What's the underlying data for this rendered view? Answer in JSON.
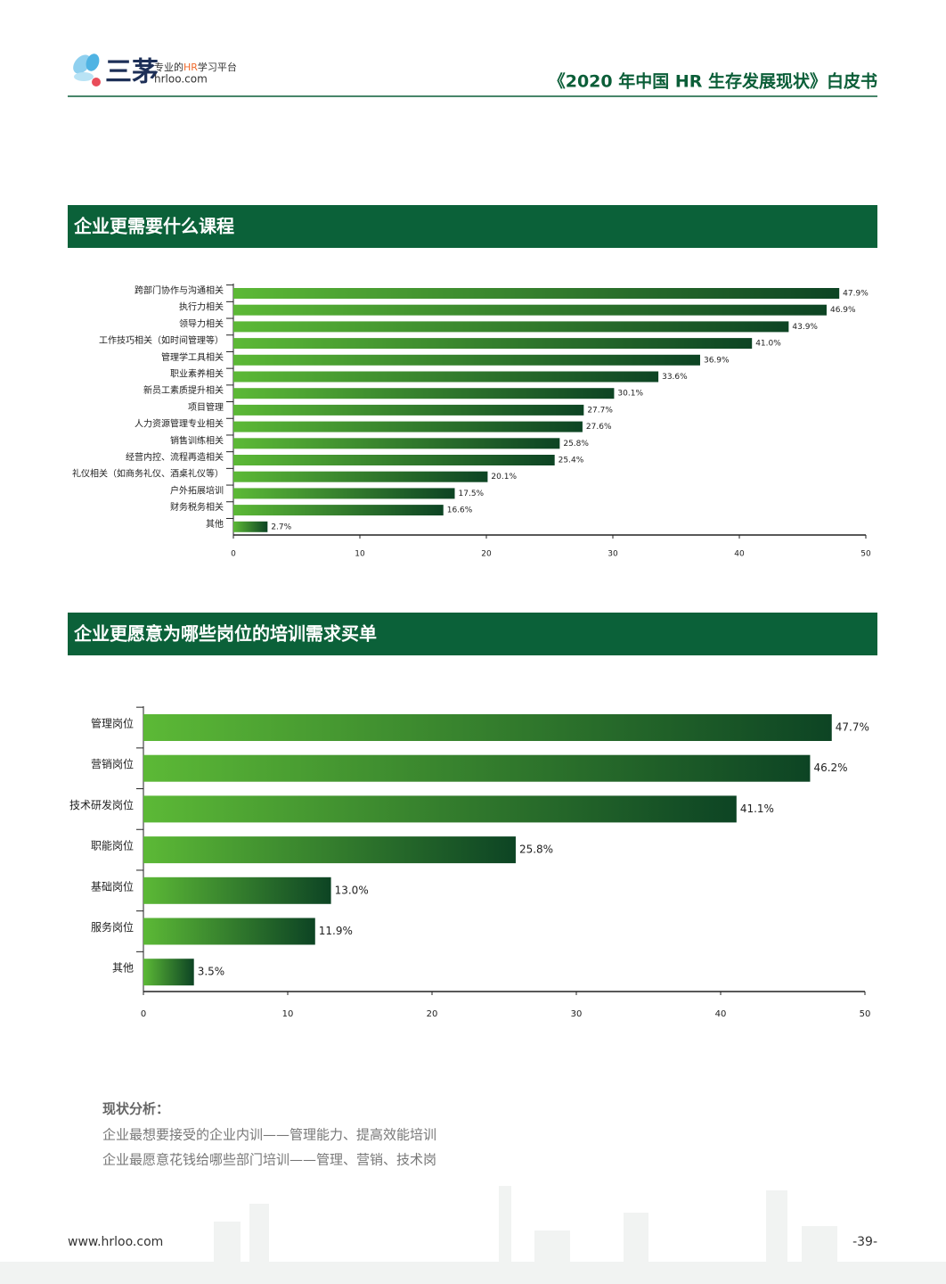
{
  "header": {
    "logo": {
      "name": "三茅",
      "slogan_pre": "专业的",
      "slogan_hr": "HR",
      "slogan_post": "学习平台",
      "domain": "hrloo.com"
    },
    "title": "《2020 年中国 HR 生存发展现状》白皮书"
  },
  "sections": [
    {
      "title": "企业更需要什么课程"
    },
    {
      "title": "企业更愿意为哪些岗位的培训需求买单"
    }
  ],
  "chart_data": [
    {
      "type": "bar",
      "orientation": "horizontal",
      "categories": [
        "跨部门协作与沟通相关",
        "执行力相关",
        "领导力相关",
        "工作技巧相关（如时间管理等）",
        "管理学工具相关",
        "职业素养相关",
        "新员工素质提升相关",
        "项目管理",
        "人力资源管理专业相关",
        "销售训练相关",
        "经营内控、流程再造相关",
        "礼仪相关（如商务礼仪、酒桌礼仪等）",
        "户外拓展培训",
        "财务税务相关",
        "其他"
      ],
      "values": [
        47.9,
        46.9,
        43.9,
        41.0,
        36.9,
        33.6,
        30.1,
        27.7,
        27.6,
        25.8,
        25.4,
        20.1,
        17.5,
        16.6,
        2.7
      ],
      "value_labels": [
        "47.9%",
        "46.9%",
        "43.9%",
        "41.0%",
        "36.9%",
        "33.6%",
        "30.1%",
        "27.7%",
        "27.6%",
        "25.8%",
        "25.4%",
        "20.1%",
        "17.5%",
        "16.6%",
        "2.7%"
      ],
      "color_start": "#5cb936",
      "color_end": "#0d4424",
      "xlim": [
        0,
        50
      ],
      "xticks": [
        0,
        10,
        20,
        30,
        40,
        50
      ]
    },
    {
      "type": "bar",
      "orientation": "horizontal",
      "categories": [
        "管理岗位",
        "营销岗位",
        "技术研发岗位",
        "职能岗位",
        "基础岗位",
        "服务岗位",
        "其他"
      ],
      "values": [
        47.7,
        46.2,
        41.1,
        25.8,
        13.0,
        11.9,
        3.5
      ],
      "value_labels": [
        "47.7%",
        "46.2%",
        "41.1%",
        "25.8%",
        "13.0%",
        "11.9%",
        "3.5%"
      ],
      "color_start": "#5cb936",
      "color_end": "#0d4424",
      "xlim": [
        0,
        50
      ],
      "xticks": [
        0,
        10,
        20,
        30,
        40,
        50
      ]
    }
  ],
  "analysis": {
    "heading": "现状分析：",
    "lines": [
      "企业最想要接受的企业内训——管理能力、提高效能培训",
      "企业最愿意花钱给哪些部门培训——管理、营销、技术岗"
    ]
  },
  "footer": {
    "url": "www.hrloo.com",
    "page": "-39-"
  }
}
